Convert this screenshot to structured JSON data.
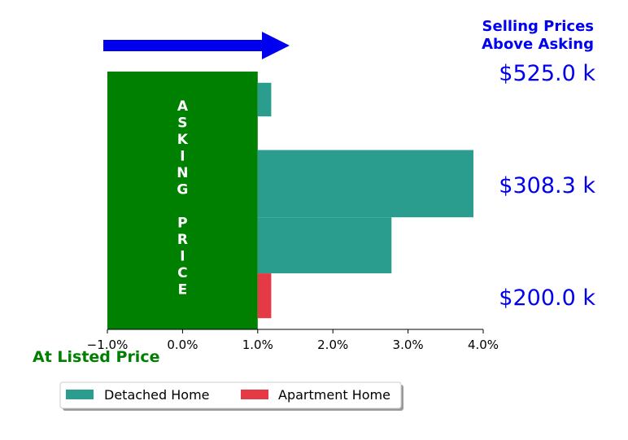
{
  "colors": {
    "annotation_blue": "#0000ee",
    "asking_green": "#008000",
    "detached": "#2a9d8f",
    "apartment": "#e63946"
  },
  "header": {
    "title_line1": "Selling Prices",
    "title_line2": "Above Asking"
  },
  "asking_box": {
    "label": "ASKING PRICE",
    "x_range": [
      -1.0,
      1.0
    ]
  },
  "price_labels": [
    "$525.0 k",
    "$308.3 k",
    "$200.0 k"
  ],
  "listed_label": "At Listed Price",
  "legend": {
    "placement": "bottom-left",
    "items": [
      {
        "label": "Detached Home",
        "color_key": "detached"
      },
      {
        "label": "Apartment Home",
        "color_key": "apartment"
      }
    ]
  },
  "chart_data": {
    "type": "bar",
    "orientation": "horizontal",
    "xlim": [
      -1.0,
      4.0
    ],
    "xticks": [
      "−1.0%",
      "0.0%",
      "1.0%",
      "2.0%",
      "3.0%",
      "4.0%"
    ],
    "xtick_values": [
      -1.0,
      0.0,
      1.0,
      2.0,
      3.0,
      4.0
    ],
    "ylim": [
      0,
      11.5
    ],
    "grid": false,
    "series": [
      {
        "name": "Detached Home",
        "bars": [
          {
            "x_start": 1.0,
            "x_end": 1.18,
            "y_start": 9.5,
            "y_end": 11.0
          },
          {
            "x_start": 1.0,
            "x_end": 3.87,
            "y_start": 5.0,
            "y_end": 8.0
          },
          {
            "x_start": 1.0,
            "x_end": 2.78,
            "y_start": 2.5,
            "y_end": 5.0
          }
        ]
      },
      {
        "name": "Apartment Home",
        "bars": [
          {
            "x_start": 1.0,
            "x_end": 1.18,
            "y_start": 0.5,
            "y_end": 2.5
          }
        ]
      }
    ]
  }
}
